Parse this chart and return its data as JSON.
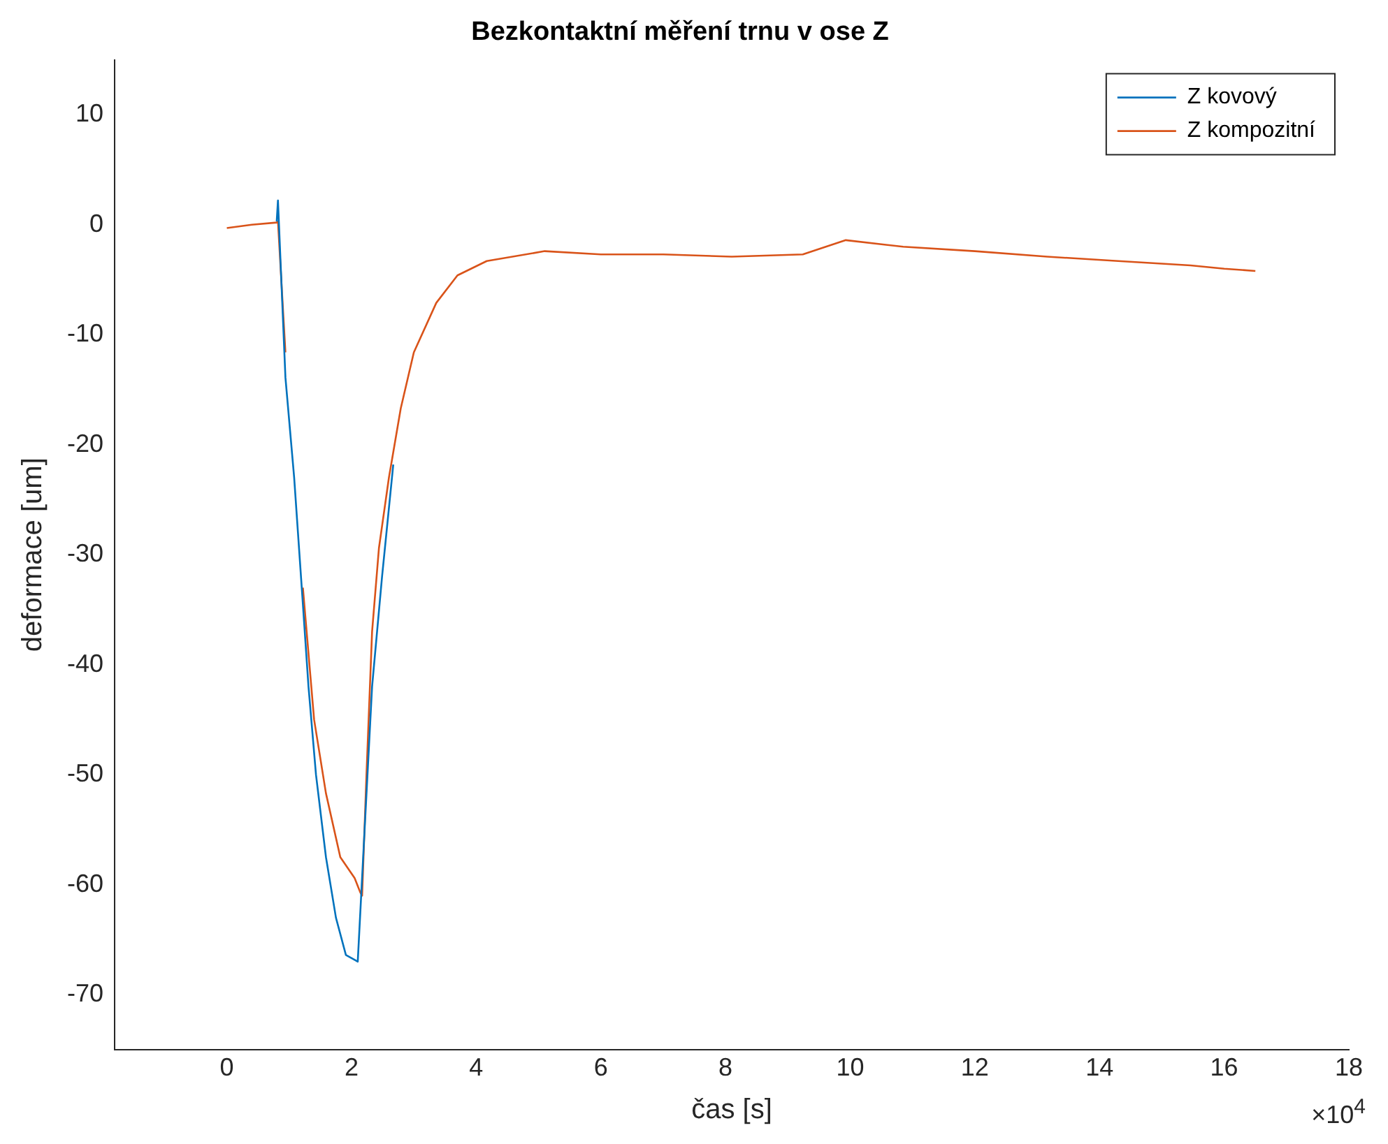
{
  "chart_data": {
    "type": "line",
    "title": "Bezkontaktní měření trnu v ose Z",
    "xlabel": "čas [s]",
    "ylabel": "deformace [um]",
    "annotations": [
      "×10$^{4}$"
    ],
    "xlim": [
      -1.8,
      18
    ],
    "ylim": [
      -75,
      15
    ],
    "xticks": [
      0,
      2,
      4,
      6,
      8,
      10,
      12,
      14,
      16,
      18
    ],
    "yticks": [
      -70,
      -60,
      -50,
      -40,
      -30,
      -20,
      -10,
      0,
      10
    ],
    "grid": false,
    "legend": "top right",
    "line_style": "solid",
    "marker": "none",
    "series": [
      {
        "name": "Z kovový",
        "color": "#0072bd",
        "x": [
          0.8,
          0.82,
          0.94,
          1.08,
          1.22,
          1.31,
          1.43,
          1.59,
          1.75,
          1.91,
          2.1,
          2.21,
          2.33,
          2.49,
          2.67
        ],
        "values": [
          0.3,
          2.2,
          -13.9,
          -23,
          -34.5,
          -42,
          -50,
          -57.5,
          -63,
          -66.4,
          -67,
          -55,
          -42,
          -32,
          -21.8
        ]
      },
      {
        "name": "Z kompozitní",
        "color": "#d95319",
        "x": [
          0,
          0.4,
          0.8,
          0.82,
          0.94,
          1.08,
          1.22,
          1.4,
          1.59,
          1.82,
          2.05,
          2.14,
          2.17,
          2.24,
          2.33,
          2.44,
          2.6,
          2.79,
          3.0,
          3.36,
          3.7,
          4.17,
          5.1,
          6.0,
          7.0,
          8.1,
          9.24,
          9.93,
          10.85,
          12.0,
          13.16,
          14.3,
          15.46,
          16.0,
          16.5
        ],
        "values": [
          -0.3,
          0,
          0.2,
          0.3,
          -11.6,
          null,
          -33,
          -45,
          -51.7,
          -57.5,
          -59.4,
          -60.7,
          -61,
          -50,
          -37,
          -29.4,
          -23,
          -16.7,
          -11.6,
          -7.1,
          -4.6,
          -3.3,
          -2.4,
          -2.7,
          -2.7,
          -2.9,
          -2.7,
          -1.4,
          -2.0,
          -2.4,
          -2.9,
          -3.3,
          -3.7,
          -4.0,
          -4.2
        ]
      }
    ]
  }
}
